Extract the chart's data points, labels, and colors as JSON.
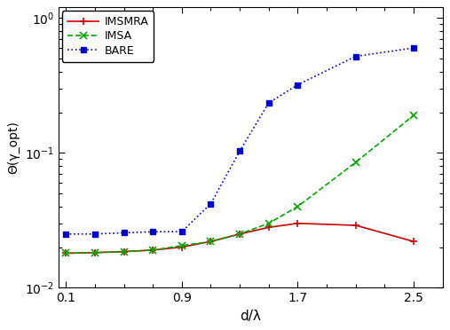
{
  "IMSMRA": {
    "x": [
      0.1,
      0.3,
      0.5,
      0.7,
      0.9,
      1.1,
      1.3,
      1.5,
      1.7,
      2.1,
      2.5
    ],
    "y": [
      0.018,
      0.0182,
      0.0185,
      0.019,
      0.02,
      0.022,
      0.025,
      0.028,
      0.03,
      0.029,
      0.022
    ],
    "color": "#cc0000",
    "linestyle": "-",
    "marker": "+",
    "label": "IMSMRA"
  },
  "IMSA": {
    "x": [
      0.1,
      0.3,
      0.5,
      0.7,
      0.9,
      1.1,
      1.3,
      1.5,
      1.7,
      2.1,
      2.5
    ],
    "y": [
      0.018,
      0.0182,
      0.0185,
      0.019,
      0.0205,
      0.022,
      0.025,
      0.03,
      0.04,
      0.085,
      0.19
    ],
    "color": "#00aa00",
    "linestyle": "--",
    "marker": "x",
    "label": "IMSA"
  },
  "BARE": {
    "x": [
      0.1,
      0.3,
      0.5,
      0.7,
      0.9,
      1.1,
      1.3,
      1.5,
      1.7,
      2.1,
      2.5
    ],
    "y": [
      0.025,
      0.025,
      0.0255,
      0.026,
      0.026,
      0.042,
      0.103,
      0.235,
      0.32,
      0.52,
      0.6
    ],
    "color": "#0000cc",
    "linestyle": ":",
    "marker": "s",
    "label": "BARE"
  },
  "xlabel": "d/λ",
  "ylabel": "Θ(γ_opt)",
  "xlim": [
    0.05,
    2.7
  ],
  "ylim": [
    0.01,
    1.2
  ],
  "xticks": [
    0.1,
    0.9,
    1.7,
    2.5
  ],
  "ytick_vals": [
    0.01,
    0.1,
    1.0
  ],
  "ytick_labels": [
    "10$^{-2}$",
    "10$^{-1}$",
    "10$^{0}$"
  ],
  "background_color": "#ffffff",
  "legend_loc": "upper left"
}
